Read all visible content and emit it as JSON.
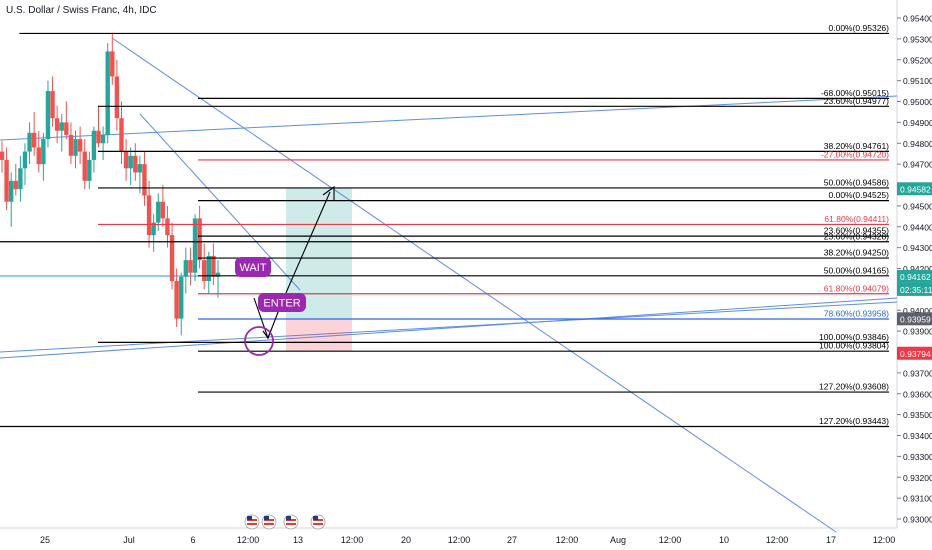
{
  "title": "U.S. Dollar / Swiss Franc, 4h, IDC",
  "chart_data": {
    "type": "candlestick",
    "y_axis": {
      "range": [
        0.9293,
        0.9549
      ],
      "ticks": [
        "0.95400",
        "0.95300",
        "0.95200",
        "0.95100",
        "0.95000",
        "0.94900",
        "0.94800",
        "0.94700",
        "0.94600",
        "0.94500",
        "0.94400",
        "0.94300",
        "0.94200",
        "0.94100",
        "0.94000",
        "0.93900",
        "0.93800",
        "0.93700",
        "0.93600",
        "0.93500",
        "0.93400",
        "0.93300",
        "0.93200",
        "0.93100",
        "0.93000"
      ]
    },
    "x_axis": {
      "ticks": [
        "25",
        "Jul",
        "6",
        "12:00",
        "13",
        "12:00",
        "20",
        "12:00",
        "27",
        "12:00",
        "Aug",
        "12:00",
        "10",
        "12:00",
        "17",
        "12:00"
      ]
    },
    "price_badges": [
      {
        "value": "0.94582",
        "color": "#26a69a",
        "text_color": "#ffffff"
      },
      {
        "value": "0.94162",
        "color": "#26a69a",
        "text_color": "#ffffff"
      },
      {
        "value": "02:35:11",
        "color": "#26a69a",
        "text_color": "#ffffff"
      },
      {
        "value": "0.93959",
        "color": "#5d606b",
        "text_color": "#ffffff"
      },
      {
        "value": "0.93794",
        "color": "#f23645",
        "text_color": "#ffffff"
      }
    ],
    "fib_levels": [
      {
        "label": "0.00%(0.95326)",
        "price": 0.95326,
        "color": "#000000",
        "start": "23 Jun 12:00"
      },
      {
        "label": "-68.00%(0.95015)",
        "price": 0.95015,
        "color": "#000000",
        "start": "6 Jul 00:00"
      },
      {
        "label": "23.60%(0.94977)",
        "price": 0.94977,
        "color": "#000000",
        "start": "29 Jun 00:00"
      },
      {
        "label": "38.20%(0.94761)",
        "price": 0.94761,
        "color": "#000000",
        "start": "29 Jun 00:00"
      },
      {
        "label": "-27.00%(0.94720)",
        "price": 0.9472,
        "color": "#f23645",
        "start": "6 Jul 00:00"
      },
      {
        "label": "50.00%(0.94586)",
        "price": 0.94586,
        "color": "#000000",
        "start": "29 Jun 00:00"
      },
      {
        "label": "0.00%(0.94525)",
        "price": 0.94525,
        "color": "#000000",
        "start": "6 Jul 00:00"
      },
      {
        "label": "61.80%(0.94411)",
        "price": 0.94411,
        "color": "#f23645",
        "start": "29 Jun 00:00"
      },
      {
        "label": "23.60%(0.94355)",
        "price": 0.94355,
        "color": "#000000",
        "start": "6 Jul 00:00"
      },
      {
        "label": "23.60%(0.94328)",
        "price": 0.94328,
        "color": "#000000",
        "start": "start"
      },
      {
        "label": "38.20%(0.94250)",
        "price": 0.9425,
        "color": "#000000",
        "start": "6 Jul 00:00"
      },
      {
        "label": "50.00%(0.94165)",
        "price": 0.94165,
        "color": "#000000",
        "start": "6 Jul 00:00"
      },
      {
        "label": "61.80%(0.94079)",
        "price": 0.94079,
        "color": "#f23645",
        "start": "6 Jul 00:00"
      },
      {
        "label": "78.60%(0.93958)",
        "price": 0.93958,
        "color": "#2962ff",
        "start": "6 Jul 00:00"
      },
      {
        "label": "100.00%(0.93846)",
        "price": 0.93846,
        "color": "#000000",
        "start": "29 Jun 00:00"
      },
      {
        "label": "100.00%(0.93804)",
        "price": 0.93804,
        "color": "#000000",
        "start": "6 Jul 00:00"
      },
      {
        "label": "127.20%(0.93608)",
        "price": 0.93608,
        "color": "#000000",
        "start": "6 Jul 00:00"
      },
      {
        "label": "127.20%(0.93443)",
        "price": 0.93443,
        "color": "#000000",
        "start": "start"
      }
    ],
    "annotations": [
      {
        "text": "WAIT",
        "color": "#9c27b0"
      },
      {
        "text": "ENTER",
        "color": "#9c27b0"
      }
    ],
    "position_tool": {
      "entry": 0.93958,
      "target": 0.94586,
      "stop": 0.93804
    }
  }
}
